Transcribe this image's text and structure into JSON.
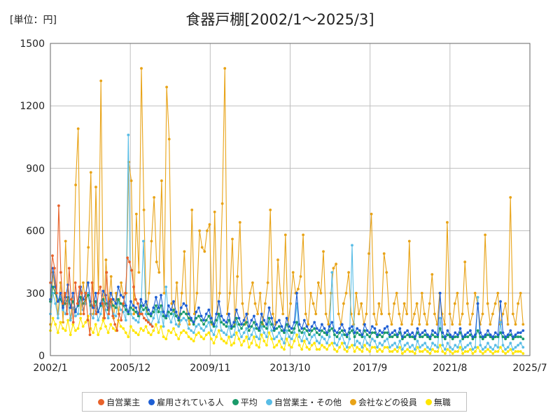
{
  "chart_data": {
    "type": "line",
    "title": "食器戸棚[2002/1～2025/3]",
    "unit_label": "[単位：円]",
    "xlabel": "",
    "ylabel": "",
    "x_range": [
      "2002/1",
      "2025/7"
    ],
    "x_ticks": [
      "2002/1",
      "2005/12",
      "2009/11",
      "2013/10",
      "2017/9",
      "2021/8",
      "2025/7"
    ],
    "ylim": [
      0,
      1500
    ],
    "y_ticks": [
      0,
      300,
      600,
      900,
      1200,
      1500
    ],
    "grid": true,
    "legend_position": "bottom",
    "series": [
      {
        "name": "自営業主",
        "color": "#e8622a",
        "x_start": "2002/1",
        "x_end": "2007/1",
        "values": [
          350,
          480,
          420,
          300,
          720,
          400,
          250,
          300,
          200,
          420,
          270,
          160,
          350,
          250,
          330,
          300,
          200,
          300,
          170,
          100,
          350,
          240,
          200,
          300,
          330,
          250,
          180,
          400,
          200,
          270,
          190,
          150,
          120,
          200,
          170,
          250,
          300,
          470,
          450,
          410,
          330,
          270,
          250,
          200,
          200,
          180,
          170,
          160,
          150,
          140
        ]
      },
      {
        "name": "雇用されている人",
        "color": "#1e5fd4",
        "x_start": "2002/1",
        "x_end": "2025/3",
        "values": [
          270,
          420,
          330,
          260,
          300,
          230,
          280,
          340,
          230,
          300,
          210,
          250,
          330,
          270,
          300,
          350,
          260,
          230,
          300,
          210,
          250,
          310,
          290,
          230,
          300,
          270,
          250,
          330,
          290,
          280,
          240,
          210,
          260,
          240,
          230,
          200,
          270,
          240,
          260,
          220,
          200,
          230,
          280,
          230,
          290,
          210,
          190,
          240,
          220,
          260,
          210,
          180,
          230,
          250,
          240,
          200,
          180,
          160,
          210,
          230,
          190,
          170,
          200,
          220,
          180,
          150,
          200,
          260,
          190,
          170,
          160,
          200,
          140,
          160,
          220,
          180,
          150,
          170,
          200,
          140,
          170,
          190,
          150,
          130,
          200,
          170,
          150,
          230,
          180,
          130,
          160,
          170,
          140,
          120,
          180,
          140,
          130,
          160,
          300,
          150,
          130,
          170,
          140,
          120,
          140,
          160,
          130,
          120,
          150,
          130,
          110,
          140,
          160,
          120,
          110,
          130,
          150,
          120,
          100,
          130,
          140,
          110,
          130,
          120,
          100,
          150,
          120,
          110,
          140,
          130,
          100,
          120,
          110,
          130,
          140,
          100,
          110,
          120,
          100,
          130,
          90,
          110,
          120,
          100,
          110,
          90,
          130,
          100,
          110,
          120,
          100,
          90,
          120,
          110,
          100,
          300,
          110,
          90,
          120,
          100,
          90,
          110,
          100,
          130,
          90,
          100,
          110,
          120,
          90,
          100,
          250,
          110,
          90,
          100,
          120,
          100,
          90,
          110,
          100,
          260,
          110,
          90,
          100,
          120,
          90,
          100,
          110,
          110,
          120
        ]
      },
      {
        "name": "平均",
        "color": "#1a9a6a",
        "x_start": "2002/1",
        "x_end": "2025/3",
        "values": [
          260,
          330,
          300,
          260,
          270,
          240,
          250,
          280,
          230,
          260,
          220,
          240,
          280,
          250,
          270,
          290,
          240,
          230,
          260,
          210,
          240,
          270,
          250,
          220,
          260,
          240,
          230,
          270,
          250,
          240,
          220,
          200,
          230,
          220,
          210,
          190,
          240,
          220,
          230,
          200,
          190,
          210,
          240,
          210,
          240,
          190,
          180,
          210,
          200,
          220,
          190,
          170,
          200,
          210,
          200,
          180,
          170,
          150,
          180,
          190,
          170,
          150,
          170,
          190,
          160,
          140,
          170,
          200,
          160,
          150,
          140,
          170,
          130,
          140,
          180,
          150,
          130,
          150,
          160,
          120,
          140,
          160,
          130,
          120,
          160,
          140,
          130,
          180,
          150,
          120,
          130,
          140,
          120,
          110,
          150,
          120,
          110,
          130,
          160,
          120,
          110,
          130,
          120,
          100,
          120,
          130,
          110,
          100,
          120,
          110,
          100,
          120,
          130,
          100,
          90,
          110,
          120,
          100,
          90,
          110,
          120,
          90,
          110,
          100,
          90,
          120,
          100,
          90,
          110,
          110,
          90,
          100,
          90,
          110,
          110,
          90,
          90,
          100,
          90,
          110,
          80,
          90,
          100,
          90,
          90,
          80,
          110,
          90,
          90,
          100,
          90,
          80,
          100,
          90,
          90,
          130,
          90,
          80,
          100,
          90,
          80,
          90,
          90,
          110,
          80,
          90,
          90,
          100,
          80,
          90,
          120,
          90,
          80,
          90,
          100,
          90,
          80,
          90,
          90,
          110,
          90,
          80,
          90,
          100,
          80,
          90,
          90,
          90,
          80
        ]
      },
      {
        "name": "自営業主・その他",
        "color": "#59bde6",
        "x_start": "2002/1",
        "x_end": "2025/3",
        "values": [
          200,
          300,
          250,
          180,
          280,
          220,
          200,
          260,
          170,
          230,
          190,
          200,
          280,
          220,
          250,
          300,
          200,
          180,
          240,
          170,
          200,
          260,
          220,
          180,
          240,
          200,
          190,
          260,
          220,
          210,
          170,
          1060,
          200,
          180,
          170,
          160,
          210,
          550,
          200,
          170,
          150,
          180,
          220,
          160,
          210,
          140,
          330,
          190,
          160,
          200,
          150,
          140,
          170,
          180,
          170,
          130,
          120,
          110,
          140,
          150,
          130,
          120,
          140,
          160,
          120,
          100,
          140,
          190,
          120,
          110,
          100,
          140,
          90,
          100,
          160,
          120,
          90,
          110,
          130,
          80,
          100,
          130,
          90,
          80,
          140,
          110,
          90,
          160,
          120,
          80,
          90,
          110,
          80,
          60,
          120,
          90,
          80,
          110,
          250,
          90,
          70,
          110,
          80,
          60,
          90,
          100,
          70,
          60,
          90,
          80,
          60,
          90,
          400,
          60,
          50,
          80,
          100,
          60,
          40,
          80,
          530,
          50,
          70,
          60,
          40,
          90,
          60,
          50,
          80,
          70,
          40,
          60,
          50,
          70,
          80,
          40,
          50,
          60,
          40,
          70,
          30,
          50,
          60,
          40,
          50,
          30,
          70,
          40,
          50,
          60,
          40,
          30,
          60,
          50,
          40,
          180,
          50,
          30,
          60,
          40,
          30,
          50,
          40,
          70,
          30,
          40,
          50,
          60,
          30,
          40,
          280,
          50,
          30,
          40,
          60,
          40,
          30,
          50,
          40,
          160,
          50,
          30,
          40,
          60,
          30,
          40,
          50,
          60,
          40
        ]
      },
      {
        "name": "会社などの役員",
        "color": "#e8a317",
        "x_start": "2002/1",
        "x_end": "2025/3",
        "values": [
          150,
          400,
          300,
          200,
          350,
          160,
          550,
          250,
          180,
          300,
          820,
          1090,
          200,
          350,
          250,
          520,
          880,
          200,
          810,
          300,
          1320,
          180,
          460,
          250,
          380,
          180,
          300,
          200,
          350,
          280,
          300,
          930,
          840,
          200,
          680,
          400,
          1380,
          700,
          200,
          300,
          550,
          760,
          450,
          400,
          840,
          300,
          1290,
          1040,
          250,
          200,
          350,
          150,
          300,
          500,
          200,
          150,
          700,
          200,
          300,
          600,
          520,
          500,
          600,
          630,
          150,
          690,
          200,
          300,
          730,
          1380,
          200,
          300,
          560,
          150,
          380,
          640,
          250,
          150,
          200,
          300,
          350,
          250,
          200,
          300,
          150,
          250,
          350,
          700,
          200,
          150,
          460,
          300,
          200,
          580,
          150,
          250,
          400,
          300,
          320,
          380,
          580,
          200,
          150,
          300,
          250,
          200,
          350,
          300,
          500,
          200,
          150,
          300,
          420,
          440,
          200,
          150,
          250,
          300,
          400,
          200,
          150,
          300,
          200,
          250,
          150,
          200,
          490,
          680,
          200,
          150,
          250,
          200,
          490,
          400,
          200,
          150,
          250,
          300,
          200,
          150,
          250,
          200,
          550,
          150,
          200,
          250,
          150,
          300,
          200,
          150,
          250,
          390,
          200,
          150,
          300,
          200,
          150,
          640,
          200,
          150,
          250,
          300,
          150,
          200,
          450,
          250,
          150,
          200,
          300,
          250,
          150,
          200,
          580,
          250,
          150,
          200,
          250,
          300,
          150,
          200,
          250,
          150,
          760,
          200,
          150,
          250,
          300,
          150
        ]
      },
      {
        "name": "無職",
        "color": "#ffe600",
        "x_start": "2002/1",
        "x_end": "2025/3",
        "values": [
          120,
          180,
          150,
          110,
          160,
          130,
          120,
          170,
          100,
          150,
          120,
          130,
          180,
          140,
          160,
          190,
          130,
          110,
          150,
          100,
          130,
          170,
          140,
          110,
          150,
          130,
          120,
          170,
          140,
          130,
          110,
          90,
          140,
          120,
          110,
          100,
          130,
          120,
          140,
          110,
          100,
          120,
          150,
          110,
          140,
          90,
          80,
          120,
          110,
          130,
          100,
          80,
          110,
          120,
          110,
          90,
          80,
          70,
          100,
          110,
          90,
          80,
          100,
          110,
          80,
          60,
          90,
          120,
          80,
          70,
          60,
          90,
          50,
          60,
          110,
          80,
          50,
          70,
          90,
          40,
          60,
          90,
          50,
          40,
          100,
          70,
          50,
          110,
          80,
          40,
          50,
          70,
          40,
          30,
          80,
          50,
          40,
          70,
          100,
          50,
          30,
          70,
          40,
          30,
          50,
          60,
          30,
          30,
          50,
          40,
          30,
          50,
          60,
          30,
          20,
          40,
          60,
          30,
          20,
          40,
          50,
          20,
          40,
          30,
          20,
          50,
          30,
          20,
          40,
          40,
          20,
          30,
          20,
          40,
          40,
          20,
          20,
          30,
          20,
          40,
          10,
          20,
          30,
          20,
          20,
          10,
          40,
          20,
          20,
          30,
          20,
          10,
          30,
          20,
          20,
          50,
          20,
          10,
          30,
          20,
          10,
          20,
          20,
          40,
          10,
          20,
          20,
          30,
          10,
          20,
          40,
          20,
          10,
          20,
          30,
          20,
          10,
          20,
          20,
          40,
          20,
          10,
          20,
          30,
          10,
          20,
          20,
          20,
          10
        ]
      }
    ]
  }
}
